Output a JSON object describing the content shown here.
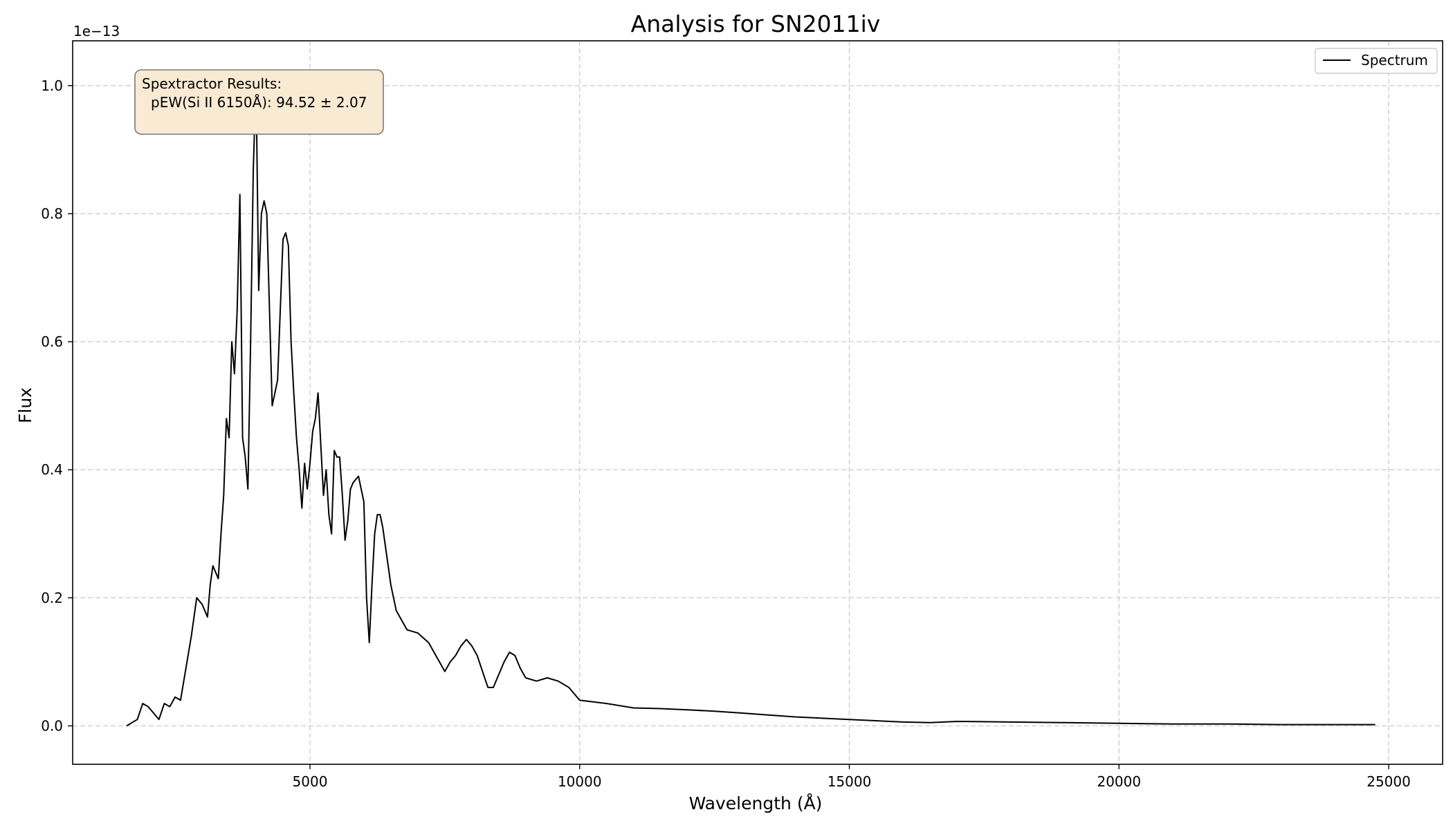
{
  "chart_data": {
    "type": "line",
    "title": "Analysis for SN2011iv",
    "xlabel": "Wavelength (Å)",
    "ylabel": "Flux",
    "y_offset_label": "1e−13",
    "y_scale": 1e-13,
    "xlim": [
      600,
      26000
    ],
    "ylim": [
      -0.06,
      1.07
    ],
    "xticks": [
      5000,
      10000,
      15000,
      20000,
      25000
    ],
    "xtick_labels": [
      "5000",
      "10000",
      "15000",
      "20000",
      "25000"
    ],
    "yticks": [
      0.0,
      0.2,
      0.4,
      0.6,
      0.8,
      1.0
    ],
    "ytick_labels": [
      "0.0",
      "0.2",
      "0.4",
      "0.6",
      "0.8",
      "1.0"
    ],
    "grid": true,
    "legend_position": "top-right",
    "line_color": "#000000",
    "annotation": {
      "line1": "Spextractor Results:",
      "line2": "pEW(Si II 6150Å): 94.52 ± 2.07",
      "background": "#f8ead3",
      "border": "#7a7a7a"
    },
    "series": [
      {
        "name": "Spectrum",
        "x": [
          1600,
          1700,
          1800,
          1900,
          2000,
          2100,
          2200,
          2300,
          2400,
          2500,
          2600,
          2700,
          2800,
          2900,
          3000,
          3100,
          3150,
          3200,
          3300,
          3350,
          3400,
          3450,
          3500,
          3550,
          3600,
          3650,
          3700,
          3750,
          3800,
          3850,
          3900,
          3950,
          4000,
          4050,
          4100,
          4150,
          4200,
          4250,
          4300,
          4350,
          4400,
          4450,
          4500,
          4550,
          4600,
          4650,
          4700,
          4750,
          4800,
          4850,
          4900,
          4950,
          5000,
          5050,
          5100,
          5150,
          5200,
          5250,
          5300,
          5350,
          5400,
          5450,
          5500,
          5550,
          5600,
          5650,
          5700,
          5750,
          5800,
          5900,
          6000,
          6050,
          6100,
          6150,
          6200,
          6250,
          6300,
          6350,
          6400,
          6500,
          6600,
          6700,
          6800,
          7000,
          7200,
          7400,
          7500,
          7600,
          7700,
          7800,
          7900,
          8000,
          8100,
          8200,
          8300,
          8400,
          8500,
          8600,
          8700,
          8800,
          8900,
          9000,
          9200,
          9400,
          9600,
          9800,
          10000,
          10500,
          11000,
          11500,
          12000,
          12500,
          13000,
          13500,
          14000,
          15000,
          16000,
          16500,
          17000,
          18000,
          19000,
          20000,
          21000,
          22000,
          23000,
          24000,
          24750
        ],
        "y": [
          0.0,
          0.005,
          0.01,
          0.035,
          0.03,
          0.02,
          0.01,
          0.035,
          0.03,
          0.045,
          0.04,
          0.09,
          0.14,
          0.2,
          0.19,
          0.17,
          0.22,
          0.25,
          0.23,
          0.3,
          0.36,
          0.48,
          0.45,
          0.6,
          0.55,
          0.65,
          0.83,
          0.45,
          0.42,
          0.37,
          0.6,
          0.87,
          1.01,
          0.68,
          0.8,
          0.82,
          0.8,
          0.65,
          0.5,
          0.52,
          0.54,
          0.65,
          0.76,
          0.77,
          0.75,
          0.6,
          0.52,
          0.45,
          0.4,
          0.34,
          0.41,
          0.37,
          0.41,
          0.46,
          0.48,
          0.52,
          0.44,
          0.36,
          0.4,
          0.33,
          0.3,
          0.43,
          0.42,
          0.42,
          0.36,
          0.29,
          0.32,
          0.37,
          0.38,
          0.39,
          0.35,
          0.2,
          0.13,
          0.22,
          0.3,
          0.33,
          0.33,
          0.31,
          0.28,
          0.22,
          0.18,
          0.165,
          0.15,
          0.145,
          0.13,
          0.1,
          0.085,
          0.1,
          0.11,
          0.125,
          0.135,
          0.125,
          0.11,
          0.085,
          0.06,
          0.06,
          0.08,
          0.1,
          0.115,
          0.11,
          0.09,
          0.075,
          0.07,
          0.075,
          0.07,
          0.06,
          0.04,
          0.035,
          0.028,
          0.027,
          0.025,
          0.023,
          0.02,
          0.017,
          0.014,
          0.01,
          0.006,
          0.005,
          0.007,
          0.006,
          0.005,
          0.004,
          0.003,
          0.003,
          0.002,
          0.002,
          0.002
        ]
      }
    ]
  }
}
